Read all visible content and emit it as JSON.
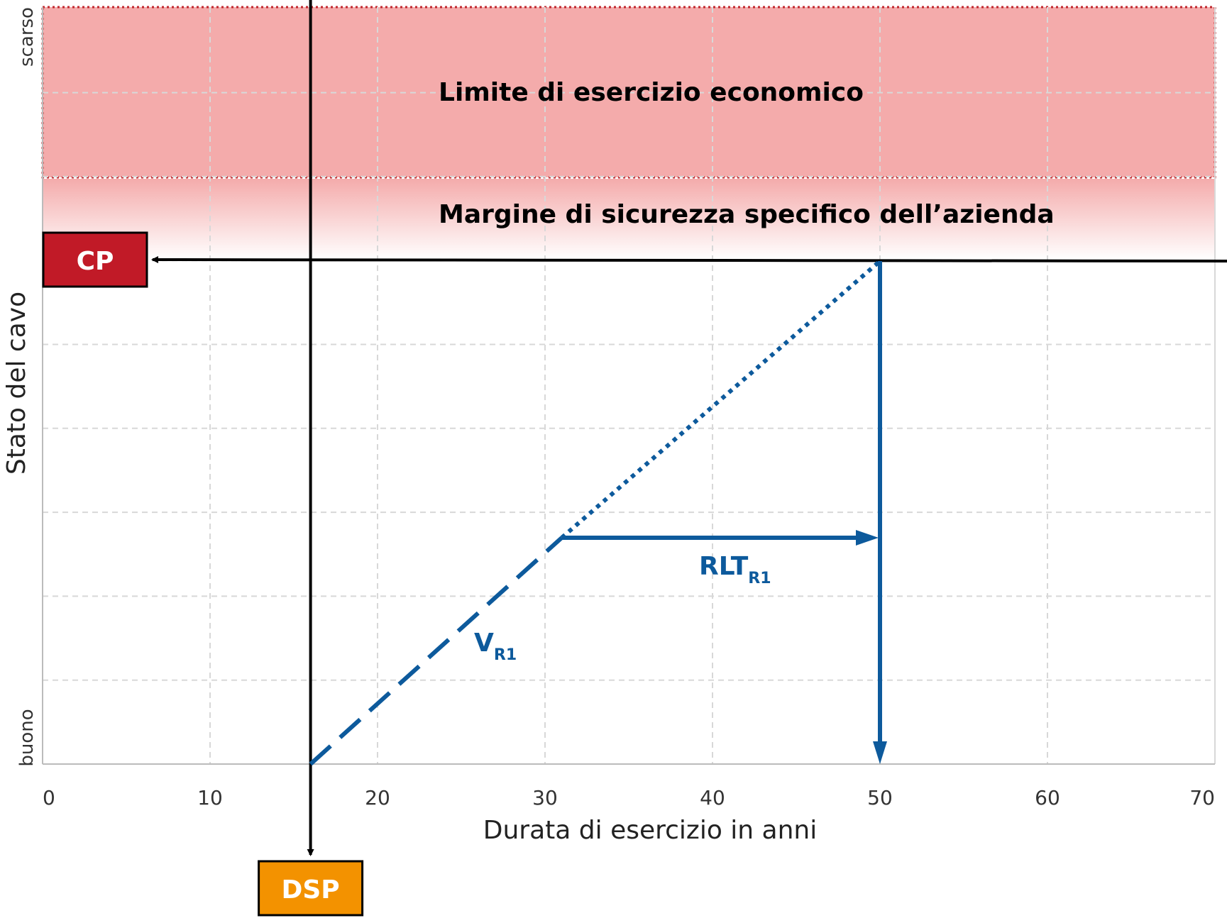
{
  "chart_data": {
    "type": "line",
    "xlabel": "Durata di esercizio in anni",
    "ylabel": "Stato del cavo",
    "xlim": [
      0,
      70
    ],
    "x_ticks": [
      "0",
      "10",
      "20",
      "30",
      "40",
      "50",
      "60",
      "70"
    ],
    "y_categories": {
      "bottom": "buono",
      "top": "scarso"
    },
    "grid": true,
    "bands": {
      "limit": "Limite di esercizio economico",
      "margin": "Margine di sicurezza specifico dell’azienda"
    },
    "markers": {
      "cp": "CP",
      "dsp": "DSP"
    },
    "series": [
      {
        "name": "VR1",
        "label_main": "V",
        "label_sub": "R1",
        "points": [
          [
            16,
            0
          ],
          [
            31,
            0.45
          ]
        ],
        "style": "dashed"
      },
      {
        "name": "RLTR1",
        "label_main": "RLT",
        "label_sub": "R1",
        "points": [
          [
            31,
            0.45
          ],
          [
            50,
            0.45
          ]
        ],
        "style": "arrow"
      },
      {
        "name": "projection",
        "points": [
          [
            31,
            0.45
          ],
          [
            50,
            1
          ]
        ],
        "style": "dotted"
      }
    ],
    "dsp_x": 16,
    "end_x": 50,
    "colors": {
      "limit_band": "#f4abab",
      "margin_top": "#f4abab",
      "border_dotted": "#c0282e",
      "cp_fill": "#c11a27",
      "dsp_fill": "#f39200",
      "series": "#0d5a9c",
      "axis": "#000000",
      "grid": "#d8d8d8"
    }
  }
}
